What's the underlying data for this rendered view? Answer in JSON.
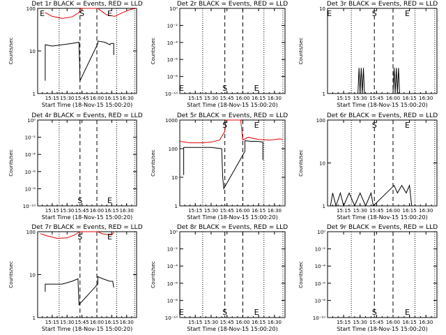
{
  "chart_data": [
    {
      "type": "line",
      "title": "Det 1r BLACK = Events, RED = LLD",
      "xlabel": "Start Time (18-Nov-15 15:00:20)",
      "ylabel": "Counts/sec",
      "y_scale": "log",
      "yticks": [
        "1",
        "10",
        "100"
      ],
      "ylim": [
        1,
        100
      ],
      "xticks": [
        "15:15",
        "15:30",
        "15:45",
        "16:00",
        "16:15",
        "16:30"
      ],
      "xlim": [
        "15:00:20",
        "16:40:00"
      ],
      "marker_labels": [
        "E",
        "S",
        "E"
      ],
      "marker_times": [
        "15:05",
        "15:45",
        "16:13"
      ],
      "dashed_lines": [
        "15:43",
        "16:00"
      ],
      "dotted_lines": [
        "15:22",
        "16:20",
        "16:38"
      ],
      "series": [
        {
          "color": "#e00000",
          "x": [
            "15:08",
            "15:15",
            "15:25",
            "15:35",
            "15:42",
            "15:44",
            "16:01",
            "16:05",
            "16:10",
            "16:18",
            "16:26",
            "16:34",
            "16:38"
          ],
          "y": [
            80,
            65,
            58,
            63,
            80,
            100,
            100,
            85,
            70,
            65,
            80,
            95,
            98
          ]
        },
        {
          "color": "#000000",
          "x": [
            "15:08",
            "15:08",
            "15:15",
            "15:25",
            "15:35",
            "15:42",
            "15:43",
            "16:01",
            "16:01",
            "16:08",
            "16:13",
            "16:14",
            "16:17",
            "16:17"
          ],
          "y": [
            2,
            14,
            13,
            14,
            15,
            16,
            2,
            15,
            17,
            16,
            14,
            15,
            15,
            8
          ]
        }
      ]
    },
    {
      "type": "line",
      "title": "Det 2r BLACK = Events, RED = LLD",
      "xlabel": "Start Time (18-Nov-15 15:00:20)",
      "ylabel": "Counts/sec",
      "y_scale": "log",
      "yticks": [
        "10⁻¹⁰",
        "10⁻⁸",
        "10⁻⁶",
        "10⁻⁴",
        "10⁻²",
        "10⁰"
      ],
      "ylim": [
        1e-10,
        1
      ],
      "xticks": [
        "15:15",
        "15:30",
        "15:45",
        "16:00",
        "16:15",
        "16:30"
      ],
      "xlim": [
        "15:00:20",
        "16:40:00"
      ],
      "marker_labels": [
        "E",
        "S",
        "E"
      ],
      "marker_times": [
        "15:02",
        "15:43",
        "16:13"
      ],
      "dashed_lines": [
        "15:43",
        "16:00"
      ],
      "dotted_lines": [
        "15:22",
        "16:20",
        "16:38"
      ],
      "series": []
    },
    {
      "type": "line",
      "title": "Det 3r BLACK = Events, RED = LLD",
      "xlabel": "Start Time (18-Nov-15 15:00:20)",
      "ylabel": "Counts/sec",
      "y_scale": "log",
      "yticks": [
        "1",
        "10"
      ],
      "ylim": [
        1,
        10
      ],
      "xticks": [
        "15:15",
        "15:30",
        "15:45",
        "16:00",
        "16:15",
        "16:30"
      ],
      "xlim": [
        "15:00:20",
        "16:40:00"
      ],
      "marker_labels": [
        "E",
        "S",
        "E"
      ],
      "marker_times": [
        "15:02",
        "15:43",
        "16:13"
      ],
      "dashed_lines": [
        "15:43",
        "16:00"
      ],
      "dotted_lines": [
        "15:22",
        "16:20",
        "16:38"
      ],
      "series": [
        {
          "color": "#000000",
          "x": [
            "15:28",
            "15:29",
            "15:30",
            "15:31",
            "15:32",
            "15:33",
            "15:34",
            "16:00",
            "16:01",
            "16:02",
            "16:03",
            "16:04",
            "16:05",
            "16:06"
          ],
          "y": [
            1,
            2,
            1,
            2,
            1,
            2,
            1,
            1,
            2,
            1,
            2,
            1,
            2,
            1
          ]
        }
      ]
    },
    {
      "type": "line",
      "title": "Det 4r BLACK = Events, RED = LLD",
      "xlabel": "Start Time (18-Nov-15 15:00:20)",
      "ylabel": "Counts/sec",
      "y_scale": "log",
      "yticks": [
        "10⁻¹⁰",
        "10⁻⁸",
        "10⁻⁶",
        "10⁻⁴",
        "10⁻²",
        "10⁰"
      ],
      "ylim": [
        1e-10,
        1
      ],
      "xticks": [
        "15:15",
        "15:30",
        "15:45",
        "16:00",
        "16:15",
        "16:30"
      ],
      "xlim": [
        "15:00:20",
        "16:40:00"
      ],
      "marker_labels": [
        "S",
        "E"
      ],
      "marker_times": [
        "15:43",
        "16:13"
      ],
      "dashed_lines": [
        "15:43",
        "16:00"
      ],
      "dotted_lines": [
        "15:22",
        "16:20",
        "16:38"
      ],
      "series": []
    },
    {
      "type": "line",
      "title": "Det 5r BLACK = Events, RED = LLD",
      "xlabel": "Start Time (18-Nov-15 15:00:20)",
      "ylabel": "Counts/sec",
      "y_scale": "log",
      "yticks": [
        "1",
        "10",
        "100",
        "1000"
      ],
      "ylim": [
        1,
        1000
      ],
      "xticks": [
        "15:15",
        "15:30",
        "15:45",
        "16:00",
        "16:15",
        "16:30"
      ],
      "xlim": [
        "15:00:20",
        "16:40:00"
      ],
      "marker_labels": [
        "S",
        "E"
      ],
      "marker_times": [
        "15:43",
        "16:13"
      ],
      "dashed_lines": [
        "15:43",
        "16:00"
      ],
      "dotted_lines": [
        "15:22",
        "16:20",
        "16:38"
      ],
      "series": [
        {
          "color": "#e00000",
          "x": [
            "15:00",
            "15:10",
            "15:20",
            "15:30",
            "15:38",
            "15:43",
            "15:44",
            "15:58",
            "16:00",
            "16:02",
            "16:05",
            "16:15",
            "16:25",
            "16:35",
            "16:38"
          ],
          "y": [
            180,
            160,
            160,
            170,
            200,
            400,
            1000,
            1000,
            200,
            220,
            250,
            210,
            200,
            220,
            210
          ]
        },
        {
          "color": "#000000",
          "x": [
            "15:04",
            "15:04",
            "15:10",
            "15:20",
            "15:30",
            "15:40",
            "15:41",
            "15:42",
            "16:02",
            "16:02",
            "16:08",
            "16:14",
            "16:19",
            "16:19"
          ],
          "y": [
            12,
            110,
            110,
            110,
            110,
            100,
            10,
            4,
            80,
            190,
            180,
            180,
            170,
            40
          ]
        }
      ]
    },
    {
      "type": "line",
      "title": "Det 6r BLACK = Events, RED = LLD",
      "xlabel": "Start Time (18-Nov-15 15:00:20)",
      "ylabel": "Counts/sec",
      "y_scale": "log",
      "yticks": [
        "1",
        "10",
        "100"
      ],
      "ylim": [
        1,
        100
      ],
      "xticks": [
        "15:15",
        "15:30",
        "15:45",
        "16:00",
        "16:15",
        "16:30"
      ],
      "xlim": [
        "15:00:20",
        "16:40:00"
      ],
      "marker_labels": [
        "S",
        "E"
      ],
      "marker_times": [
        "15:43",
        "16:13"
      ],
      "dashed_lines": [
        "15:43",
        "16:00"
      ],
      "dotted_lines": [
        "15:22",
        "16:20",
        "16:38"
      ],
      "series": [
        {
          "color": "#000000",
          "x": [
            "15:03",
            "15:05",
            "15:08",
            "15:12",
            "15:15",
            "15:20",
            "15:25",
            "15:30",
            "15:35",
            "15:40",
            "15:42",
            "16:01",
            "16:04",
            "16:08",
            "16:12",
            "16:15",
            "16:17"
          ],
          "y": [
            1,
            2,
            1,
            2,
            1,
            2,
            1,
            2,
            1,
            2,
            1,
            3,
            2,
            3,
            2,
            3,
            1
          ]
        }
      ]
    },
    {
      "type": "line",
      "title": "Det 7r BLACK = Events, RED = LLD",
      "xlabel": "Start Time (18-Nov-15 15:00:20)",
      "ylabel": "Counts/sec",
      "y_scale": "log",
      "yticks": [
        "1",
        "10",
        "100"
      ],
      "ylim": [
        1,
        100
      ],
      "xticks": [
        "15:15",
        "15:30",
        "15:45",
        "16:00",
        "16:15",
        "16:30"
      ],
      "xlim": [
        "15:00:20",
        "16:40:00"
      ],
      "marker_labels": [
        "S",
        "E"
      ],
      "marker_times": [
        "15:43",
        "16:13"
      ],
      "dashed_lines": [
        "15:43",
        "16:00"
      ],
      "dotted_lines": [
        "15:22",
        "16:20",
        "16:38"
      ],
      "series": [
        {
          "color": "#e00000",
          "x": [
            "15:03",
            "15:10",
            "15:20",
            "15:30",
            "15:38",
            "15:43",
            "16:01",
            "16:05",
            "16:10",
            "16:15",
            "16:17"
          ],
          "y": [
            90,
            80,
            70,
            72,
            85,
            100,
            100,
            90,
            85,
            85,
            95
          ]
        },
        {
          "color": "#000000",
          "x": [
            "15:08",
            "15:08",
            "15:15",
            "15:25",
            "15:35",
            "15:41",
            "15:42",
            "16:01",
            "16:01",
            "16:06",
            "16:13",
            "16:16",
            "16:17"
          ],
          "y": [
            4,
            6,
            6,
            6,
            7,
            8,
            2,
            6,
            9,
            8,
            7,
            7,
            5
          ]
        }
      ]
    },
    {
      "type": "line",
      "title": "Det 8r BLACK = Events, RED = LLD",
      "xlabel": "Start Time (18-Nov-15 15:00:20)",
      "ylabel": "Counts/sec",
      "y_scale": "log",
      "yticks": [
        "10⁻¹⁰",
        "10⁻⁸",
        "10⁻⁶",
        "10⁻⁴",
        "10⁻²",
        "10⁰"
      ],
      "ylim": [
        1e-10,
        1
      ],
      "xticks": [
        "15:15",
        "15:30",
        "15:45",
        "16:00",
        "16:15",
        "16:30"
      ],
      "xlim": [
        "15:00:20",
        "16:40:00"
      ],
      "marker_labels": [
        "E",
        "S",
        "E"
      ],
      "marker_times": [
        "15:02",
        "15:43",
        "16:13"
      ],
      "dashed_lines": [
        "15:43",
        "16:00"
      ],
      "dotted_lines": [
        "15:22",
        "16:20",
        "16:38"
      ],
      "series": []
    },
    {
      "type": "line",
      "title": "Det 9r BLACK = Events, RED = LLD",
      "xlabel": "Start Time (18-Nov-15 15:00:20)",
      "ylabel": "Counts/sec",
      "y_scale": "log",
      "yticks": [
        "10⁻¹⁰",
        "10⁻⁸",
        "10⁻⁶",
        "10⁻⁴",
        "10⁻²",
        "10⁰"
      ],
      "ylim": [
        1e-10,
        1
      ],
      "xticks": [
        "15:15",
        "15:30",
        "15:45",
        "16:00",
        "16:15",
        "16:30"
      ],
      "xlim": [
        "15:00:20",
        "16:40:00"
      ],
      "marker_labels": [
        "S",
        "E"
      ],
      "marker_times": [
        "15:43",
        "16:13"
      ],
      "dashed_lines": [
        "15:43",
        "16:00"
      ],
      "dotted_lines": [
        "15:22",
        "16:20",
        "16:38"
      ],
      "series": []
    }
  ]
}
